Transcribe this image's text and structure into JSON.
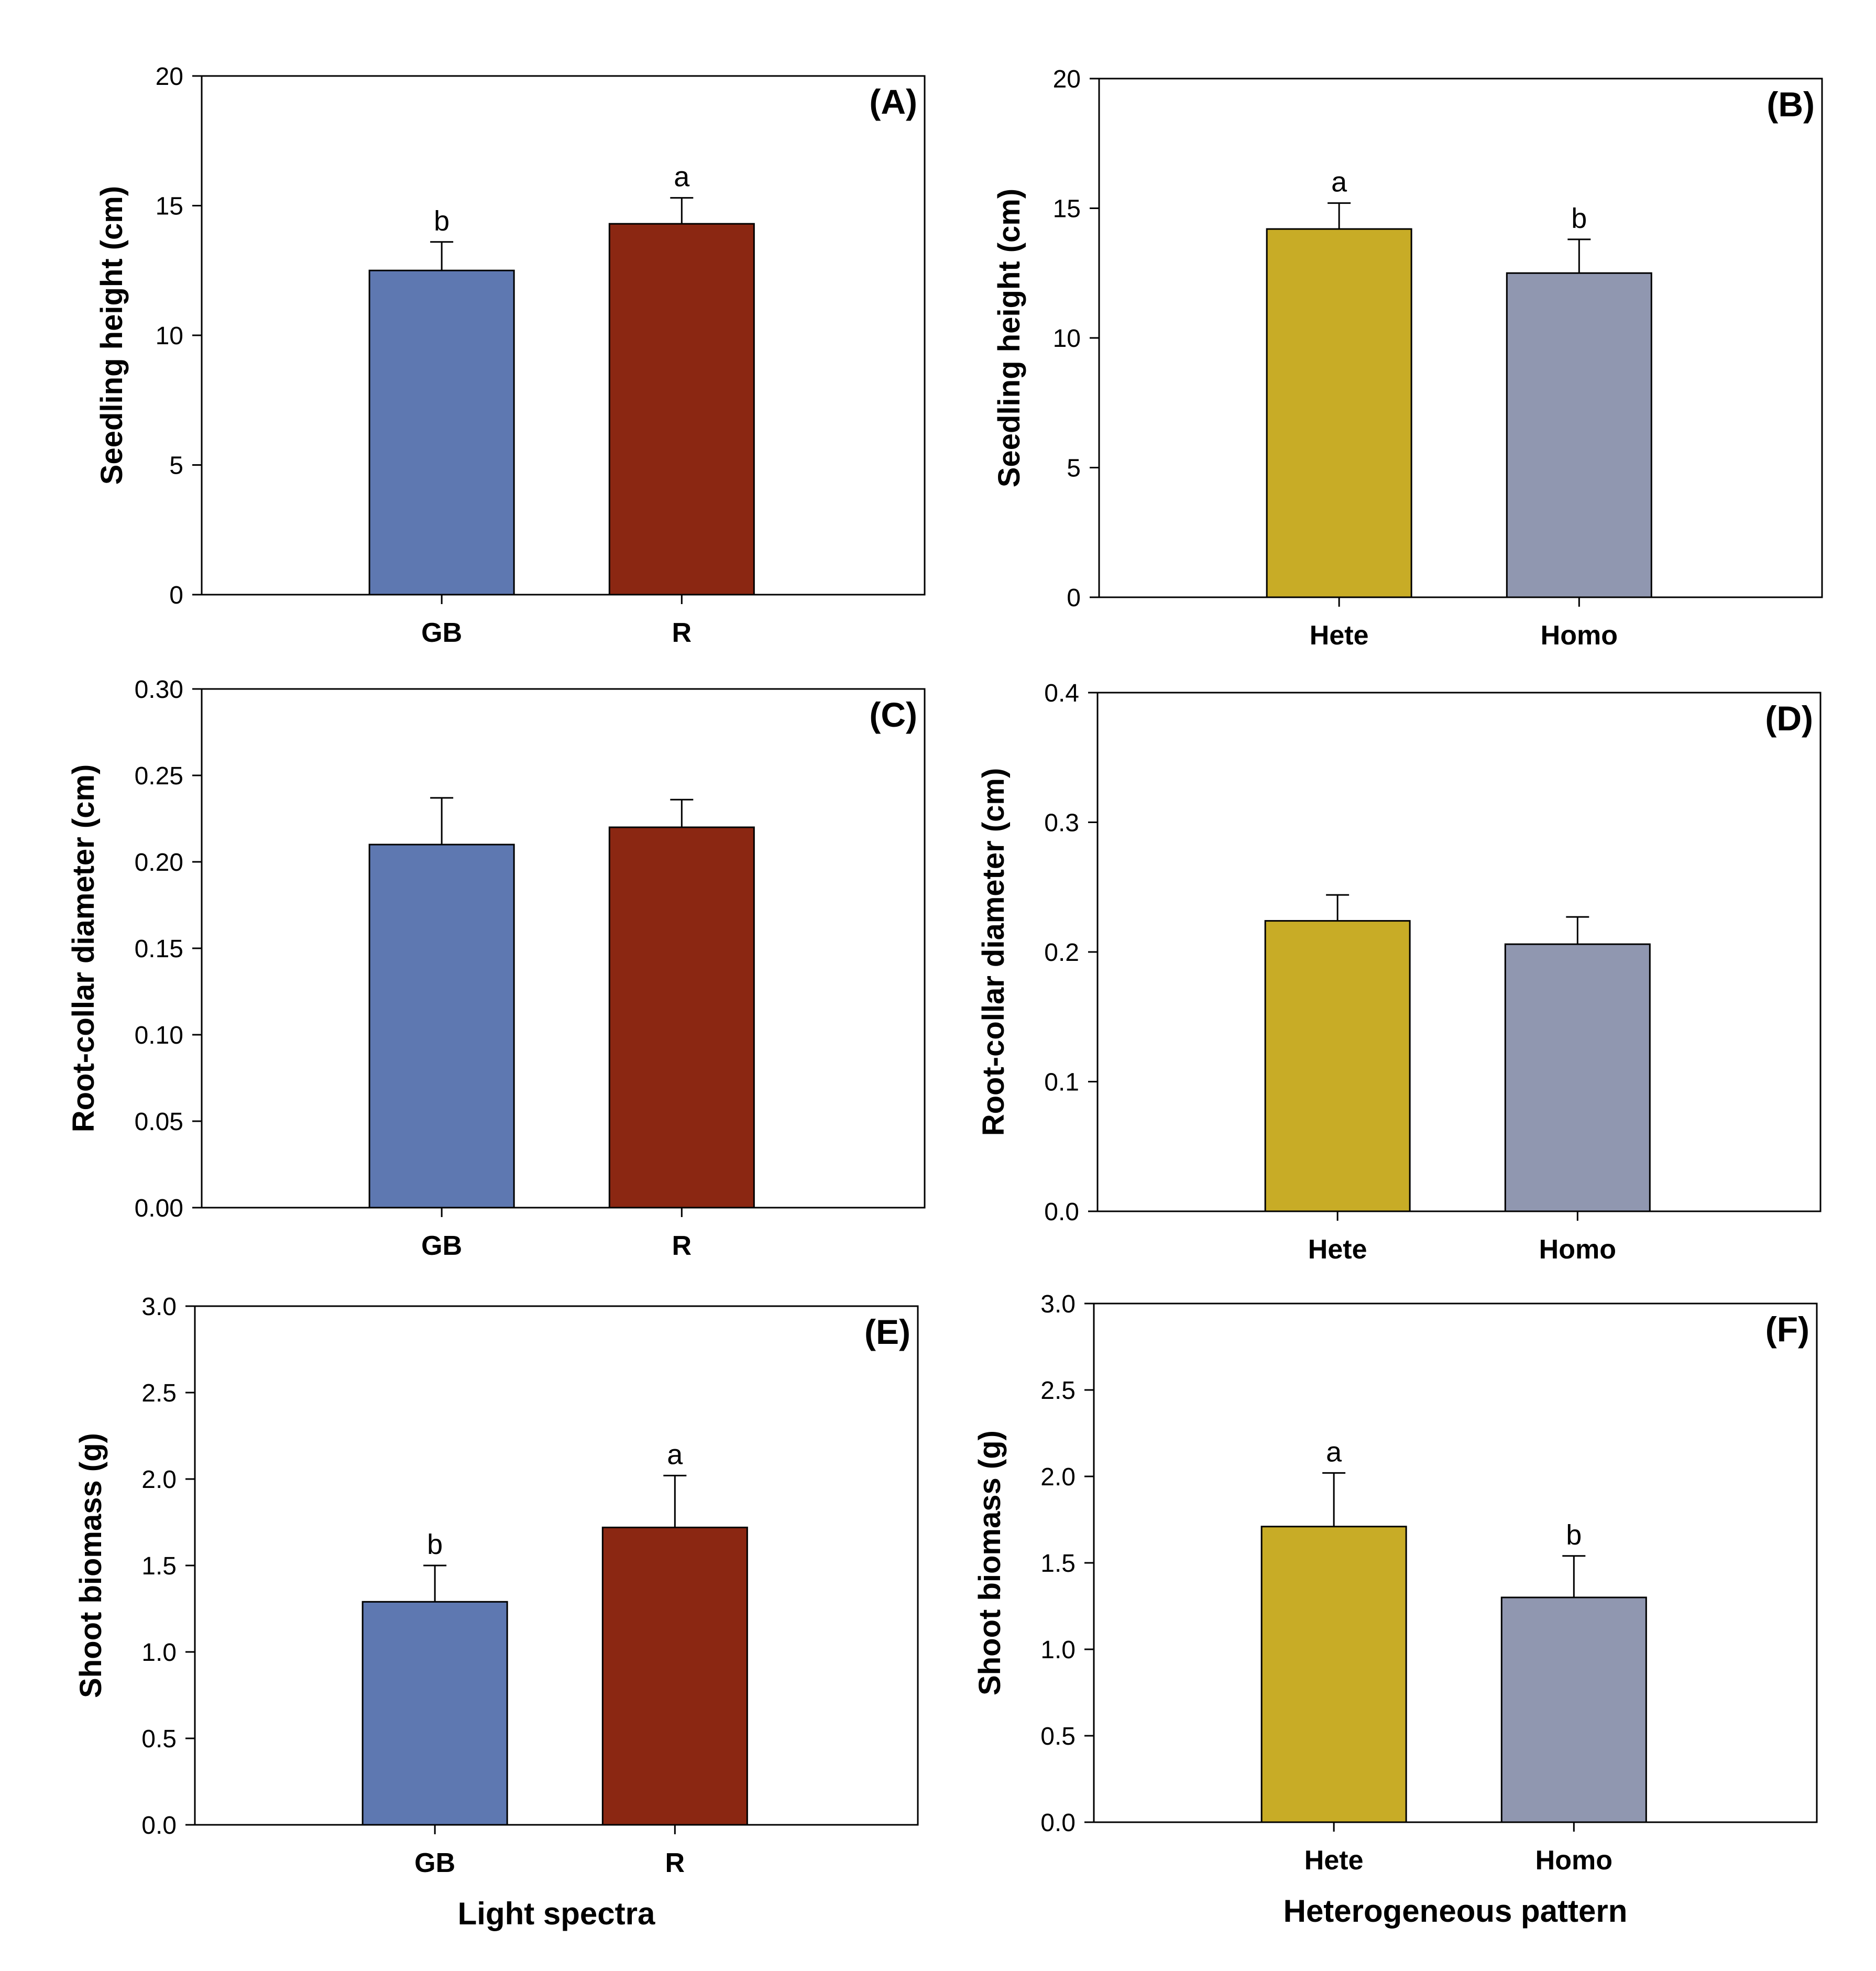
{
  "chart_data": [
    {
      "type": "bar",
      "panel": "(A)",
      "categories": [
        "GB",
        "R"
      ],
      "values": [
        12.5,
        14.3
      ],
      "errors": [
        1.1,
        1.0
      ],
      "significance": [
        "b",
        "a"
      ],
      "colors": [
        "#5e78b1",
        "#8b2712"
      ],
      "ylabel": "Seedling height (cm)",
      "xlabel": "",
      "ylim": [
        0,
        20
      ],
      "yticks": [
        "0",
        "5",
        "10",
        "15",
        "20"
      ]
    },
    {
      "type": "bar",
      "panel": "(B)",
      "categories": [
        "Hete",
        "Homo"
      ],
      "values": [
        14.2,
        12.5
      ],
      "errors": [
        1.0,
        1.3
      ],
      "significance": [
        "a",
        "b"
      ],
      "colors": [
        "#c8ac26",
        "#9097b0"
      ],
      "ylabel": "Seedling height (cm)",
      "xlabel": "",
      "ylim": [
        0,
        20
      ],
      "yticks": [
        "0",
        "5",
        "10",
        "15",
        "20"
      ]
    },
    {
      "type": "bar",
      "panel": "(C)",
      "categories": [
        "GB",
        "R"
      ],
      "values": [
        0.21,
        0.22
      ],
      "errors": [
        0.027,
        0.016
      ],
      "significance": [
        "",
        ""
      ],
      "colors": [
        "#5e78b1",
        "#8b2712"
      ],
      "ylabel": "Root-collar diameter (cm)",
      "xlabel": "",
      "ylim": [
        0,
        0.3
      ],
      "yticks": [
        "0.00",
        "0.05",
        "0.10",
        "0.15",
        "0.20",
        "0.25",
        "0.30"
      ]
    },
    {
      "type": "bar",
      "panel": "(D)",
      "categories": [
        "Hete",
        "Homo"
      ],
      "values": [
        0.224,
        0.206
      ],
      "errors": [
        0.02,
        0.021
      ],
      "significance": [
        "",
        ""
      ],
      "colors": [
        "#c8ac26",
        "#9097b0"
      ],
      "ylabel": "Root-collar diameter (cm)",
      "xlabel": "",
      "ylim": [
        0,
        0.4
      ],
      "yticks": [
        "0.0",
        "0.1",
        "0.2",
        "0.3",
        "0.4"
      ]
    },
    {
      "type": "bar",
      "panel": "(E)",
      "categories": [
        "GB",
        "R"
      ],
      "values": [
        1.29,
        1.72
      ],
      "errors": [
        0.21,
        0.3
      ],
      "significance": [
        "b",
        "a"
      ],
      "colors": [
        "#5e78b1",
        "#8b2712"
      ],
      "ylabel": "Shoot biomass (g)",
      "xlabel": "Light spectra",
      "ylim": [
        0,
        3
      ],
      "yticks": [
        "0.0",
        "0.5",
        "1.0",
        "1.5",
        "2.0",
        "2.5",
        "3.0"
      ]
    },
    {
      "type": "bar",
      "panel": "(F)",
      "categories": [
        "Hete",
        "Homo"
      ],
      "values": [
        1.71,
        1.3
      ],
      "errors": [
        0.31,
        0.24
      ],
      "significance": [
        "a",
        "b"
      ],
      "colors": [
        "#c8ac26",
        "#9097b0"
      ],
      "ylabel": "Shoot biomass (g)",
      "xlabel": "Heterogeneous pattern",
      "ylim": [
        0,
        3
      ],
      "yticks": [
        "0.0",
        "0.5",
        "1.0",
        "1.5",
        "2.0",
        "2.5",
        "3.0"
      ]
    }
  ]
}
